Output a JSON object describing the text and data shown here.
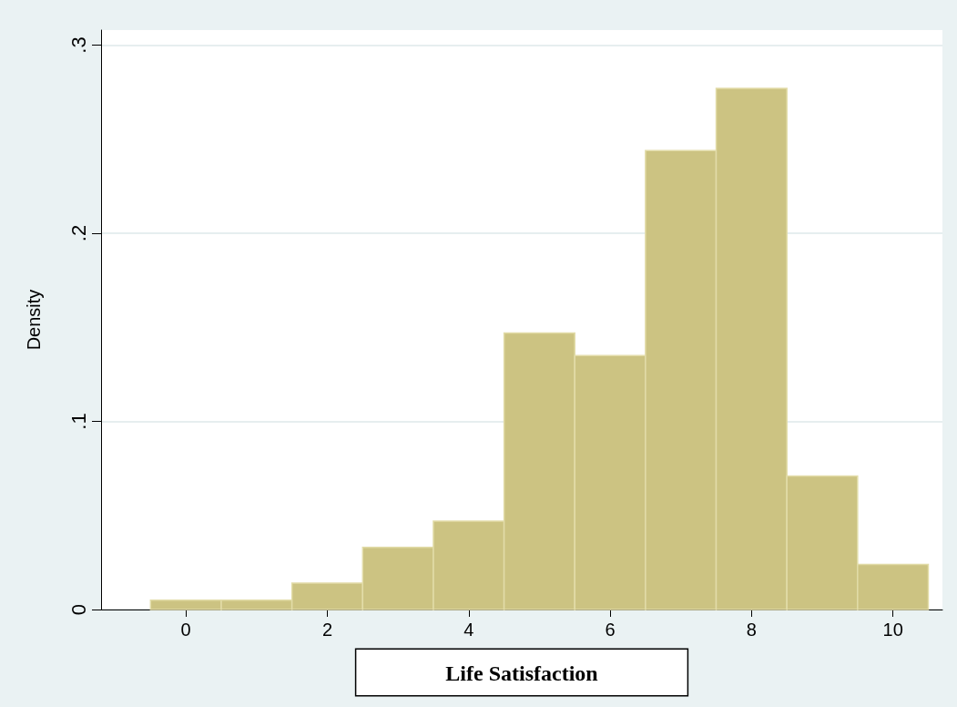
{
  "chart_data": {
    "type": "histogram",
    "xlabel": "Life Satisfaction",
    "ylabel": "Density",
    "bins": [
      -0.5,
      0.5,
      1.5,
      2.5,
      3.5,
      4.5,
      5.5,
      6.5,
      7.5,
      8.5,
      9.5,
      10.5
    ],
    "values": [
      0.005,
      0.005,
      0.014,
      0.033,
      0.047,
      0.147,
      0.135,
      0.244,
      0.277,
      0.071,
      0.024
    ],
    "color": "#ccc382",
    "xlim": [
      -1.2,
      10.7
    ],
    "xticks": [
      0,
      2,
      4,
      6,
      8,
      10
    ],
    "ylim": [
      0,
      0.308
    ],
    "yticks": [
      0,
      {
        "value": 0.1,
        "label": ".1"
      },
      {
        "value": 0.2,
        "label": ".2"
      },
      {
        "value": 0.3,
        "label": ".3"
      }
    ],
    "grid": "y"
  }
}
